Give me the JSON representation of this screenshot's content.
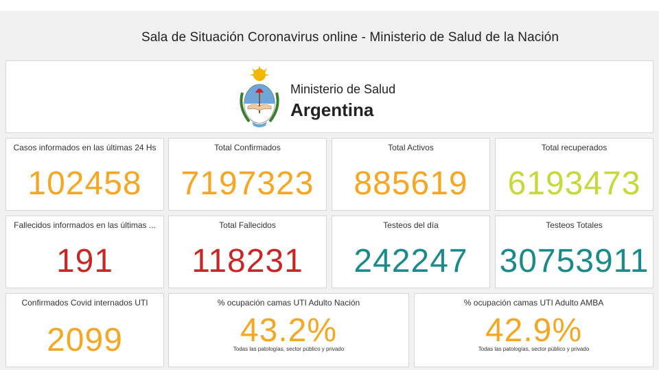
{
  "header": {
    "title": "Sala de Situación Coronavirus online - Ministerio de Salud de la Nación"
  },
  "logo": {
    "line1": "Ministerio de Salud",
    "line2": "Argentina",
    "emblem": "argentina-coat-of-arms-icon"
  },
  "colors": {
    "orange": "#f5a623",
    "lime": "#c5d93a",
    "red": "#c62828",
    "teal": "#1b8a8a"
  },
  "row1": [
    {
      "label": "Casos informados en las últimas 24 Hs",
      "value": "102458"
    },
    {
      "label": "Total Confirmados",
      "value": "7197323"
    },
    {
      "label": "Total Activos",
      "value": "885619"
    },
    {
      "label": "Total recuperados",
      "value": "6193473"
    }
  ],
  "row2": [
    {
      "label": "Fallecidos informados en las últimas ...",
      "value": "191"
    },
    {
      "label": "Total Fallecidos",
      "value": "118231"
    },
    {
      "label": "Testeos del día",
      "value": "242247"
    },
    {
      "label": "Testeos Totales",
      "value": "30753911"
    }
  ],
  "row3": [
    {
      "label": "Confirmados Covid internados UTI",
      "value": "2099"
    },
    {
      "label": "% ocupación camas UTI Adulto Nación",
      "value": "43.2%",
      "note": "Todas las patologías, sector público y privado"
    },
    {
      "label": "% ocupación camas UTI Adulto AMBA",
      "value": "42.9%",
      "note": "Todas las patologías, sector público y privado"
    }
  ]
}
